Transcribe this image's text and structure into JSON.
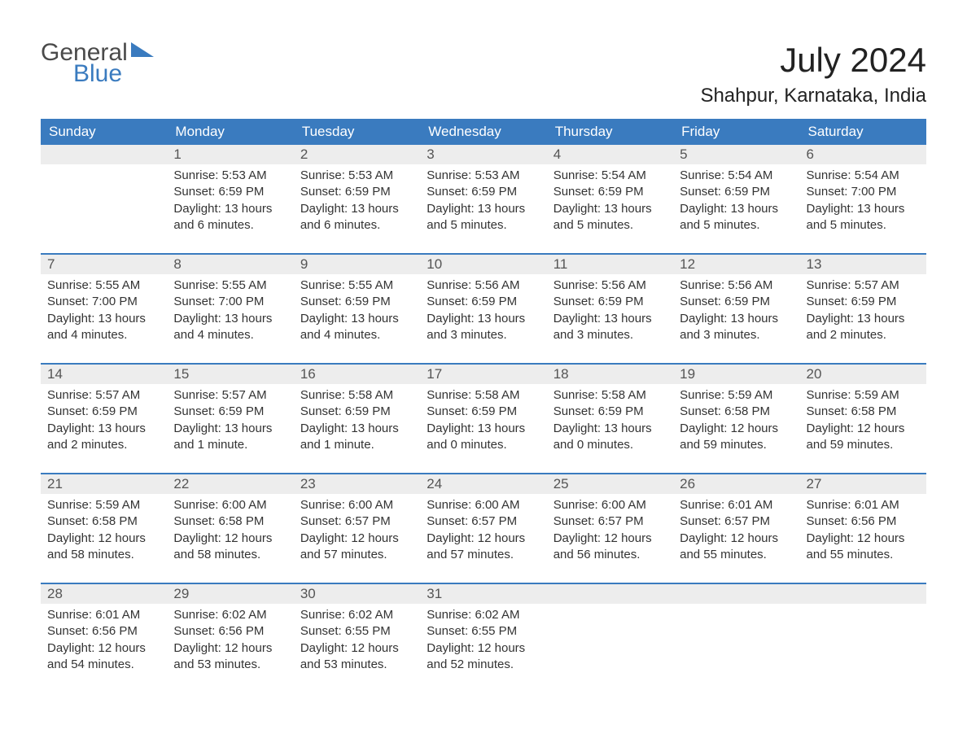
{
  "logo": {
    "line1": "General",
    "line2": "Blue"
  },
  "title": "July 2024",
  "location": "Shahpur, Karnataka, India",
  "colors": {
    "header_bg": "#3a7bbf",
    "header_text": "#ffffff",
    "daynum_bg": "#ededed",
    "row_border": "#3a7bbf",
    "body_text": "#333333",
    "logo_gray": "#4a4a4a",
    "logo_blue": "#3a7bbf"
  },
  "day_headers": [
    "Sunday",
    "Monday",
    "Tuesday",
    "Wednesday",
    "Thursday",
    "Friday",
    "Saturday"
  ],
  "weeks": [
    [
      {
        "num": "",
        "sunrise": "",
        "sunset": "",
        "daylight": ""
      },
      {
        "num": "1",
        "sunrise": "Sunrise: 5:53 AM",
        "sunset": "Sunset: 6:59 PM",
        "daylight": "Daylight: 13 hours and 6 minutes."
      },
      {
        "num": "2",
        "sunrise": "Sunrise: 5:53 AM",
        "sunset": "Sunset: 6:59 PM",
        "daylight": "Daylight: 13 hours and 6 minutes."
      },
      {
        "num": "3",
        "sunrise": "Sunrise: 5:53 AM",
        "sunset": "Sunset: 6:59 PM",
        "daylight": "Daylight: 13 hours and 5 minutes."
      },
      {
        "num": "4",
        "sunrise": "Sunrise: 5:54 AM",
        "sunset": "Sunset: 6:59 PM",
        "daylight": "Daylight: 13 hours and 5 minutes."
      },
      {
        "num": "5",
        "sunrise": "Sunrise: 5:54 AM",
        "sunset": "Sunset: 6:59 PM",
        "daylight": "Daylight: 13 hours and 5 minutes."
      },
      {
        "num": "6",
        "sunrise": "Sunrise: 5:54 AM",
        "sunset": "Sunset: 7:00 PM",
        "daylight": "Daylight: 13 hours and 5 minutes."
      }
    ],
    [
      {
        "num": "7",
        "sunrise": "Sunrise: 5:55 AM",
        "sunset": "Sunset: 7:00 PM",
        "daylight": "Daylight: 13 hours and 4 minutes."
      },
      {
        "num": "8",
        "sunrise": "Sunrise: 5:55 AM",
        "sunset": "Sunset: 7:00 PM",
        "daylight": "Daylight: 13 hours and 4 minutes."
      },
      {
        "num": "9",
        "sunrise": "Sunrise: 5:55 AM",
        "sunset": "Sunset: 6:59 PM",
        "daylight": "Daylight: 13 hours and 4 minutes."
      },
      {
        "num": "10",
        "sunrise": "Sunrise: 5:56 AM",
        "sunset": "Sunset: 6:59 PM",
        "daylight": "Daylight: 13 hours and 3 minutes."
      },
      {
        "num": "11",
        "sunrise": "Sunrise: 5:56 AM",
        "sunset": "Sunset: 6:59 PM",
        "daylight": "Daylight: 13 hours and 3 minutes."
      },
      {
        "num": "12",
        "sunrise": "Sunrise: 5:56 AM",
        "sunset": "Sunset: 6:59 PM",
        "daylight": "Daylight: 13 hours and 3 minutes."
      },
      {
        "num": "13",
        "sunrise": "Sunrise: 5:57 AM",
        "sunset": "Sunset: 6:59 PM",
        "daylight": "Daylight: 13 hours and 2 minutes."
      }
    ],
    [
      {
        "num": "14",
        "sunrise": "Sunrise: 5:57 AM",
        "sunset": "Sunset: 6:59 PM",
        "daylight": "Daylight: 13 hours and 2 minutes."
      },
      {
        "num": "15",
        "sunrise": "Sunrise: 5:57 AM",
        "sunset": "Sunset: 6:59 PM",
        "daylight": "Daylight: 13 hours and 1 minute."
      },
      {
        "num": "16",
        "sunrise": "Sunrise: 5:58 AM",
        "sunset": "Sunset: 6:59 PM",
        "daylight": "Daylight: 13 hours and 1 minute."
      },
      {
        "num": "17",
        "sunrise": "Sunrise: 5:58 AM",
        "sunset": "Sunset: 6:59 PM",
        "daylight": "Daylight: 13 hours and 0 minutes."
      },
      {
        "num": "18",
        "sunrise": "Sunrise: 5:58 AM",
        "sunset": "Sunset: 6:59 PM",
        "daylight": "Daylight: 13 hours and 0 minutes."
      },
      {
        "num": "19",
        "sunrise": "Sunrise: 5:59 AM",
        "sunset": "Sunset: 6:58 PM",
        "daylight": "Daylight: 12 hours and 59 minutes."
      },
      {
        "num": "20",
        "sunrise": "Sunrise: 5:59 AM",
        "sunset": "Sunset: 6:58 PM",
        "daylight": "Daylight: 12 hours and 59 minutes."
      }
    ],
    [
      {
        "num": "21",
        "sunrise": "Sunrise: 5:59 AM",
        "sunset": "Sunset: 6:58 PM",
        "daylight": "Daylight: 12 hours and 58 minutes."
      },
      {
        "num": "22",
        "sunrise": "Sunrise: 6:00 AM",
        "sunset": "Sunset: 6:58 PM",
        "daylight": "Daylight: 12 hours and 58 minutes."
      },
      {
        "num": "23",
        "sunrise": "Sunrise: 6:00 AM",
        "sunset": "Sunset: 6:57 PM",
        "daylight": "Daylight: 12 hours and 57 minutes."
      },
      {
        "num": "24",
        "sunrise": "Sunrise: 6:00 AM",
        "sunset": "Sunset: 6:57 PM",
        "daylight": "Daylight: 12 hours and 57 minutes."
      },
      {
        "num": "25",
        "sunrise": "Sunrise: 6:00 AM",
        "sunset": "Sunset: 6:57 PM",
        "daylight": "Daylight: 12 hours and 56 minutes."
      },
      {
        "num": "26",
        "sunrise": "Sunrise: 6:01 AM",
        "sunset": "Sunset: 6:57 PM",
        "daylight": "Daylight: 12 hours and 55 minutes."
      },
      {
        "num": "27",
        "sunrise": "Sunrise: 6:01 AM",
        "sunset": "Sunset: 6:56 PM",
        "daylight": "Daylight: 12 hours and 55 minutes."
      }
    ],
    [
      {
        "num": "28",
        "sunrise": "Sunrise: 6:01 AM",
        "sunset": "Sunset: 6:56 PM",
        "daylight": "Daylight: 12 hours and 54 minutes."
      },
      {
        "num": "29",
        "sunrise": "Sunrise: 6:02 AM",
        "sunset": "Sunset: 6:56 PM",
        "daylight": "Daylight: 12 hours and 53 minutes."
      },
      {
        "num": "30",
        "sunrise": "Sunrise: 6:02 AM",
        "sunset": "Sunset: 6:55 PM",
        "daylight": "Daylight: 12 hours and 53 minutes."
      },
      {
        "num": "31",
        "sunrise": "Sunrise: 6:02 AM",
        "sunset": "Sunset: 6:55 PM",
        "daylight": "Daylight: 12 hours and 52 minutes."
      },
      {
        "num": "",
        "sunrise": "",
        "sunset": "",
        "daylight": ""
      },
      {
        "num": "",
        "sunrise": "",
        "sunset": "",
        "daylight": ""
      },
      {
        "num": "",
        "sunrise": "",
        "sunset": "",
        "daylight": ""
      }
    ]
  ]
}
